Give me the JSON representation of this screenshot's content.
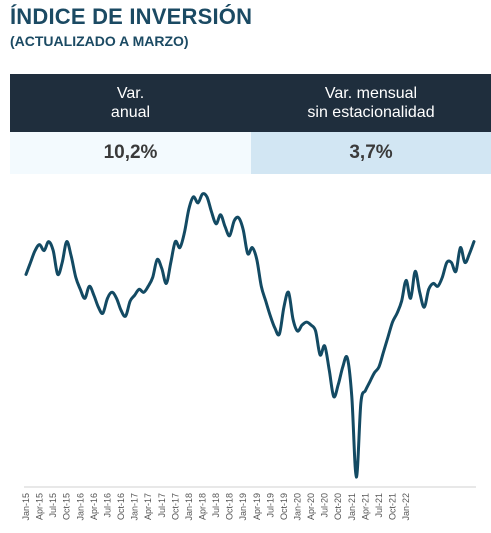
{
  "header": {
    "title": "ÍNDICE DE INVERSIÓN",
    "subtitle": "(ACTUALIZADO A MARZO)"
  },
  "kpis": [
    {
      "label_line1": "Var.",
      "label_line2": "anual",
      "value": "10,2%"
    },
    {
      "label_line1": "Var. mensual",
      "label_line2": "sin estacionalidad",
      "value": "3,7%"
    }
  ],
  "colors": {
    "line": "#134a63",
    "header_bg": "#1f2e3d",
    "title": "#1b4a63",
    "kpi_left_bg": "#f3fafe",
    "kpi_right_bg": "#d2e6f3"
  },
  "chart_data": {
    "type": "line",
    "title": "",
    "xlabel": "",
    "ylabel": "",
    "grid": false,
    "legend": "none",
    "x_tick_labels": [
      "Jan-15",
      "Apr-15",
      "Jul-15",
      "Oct-15",
      "Jan-16",
      "Apr-16",
      "Jul-16",
      "Oct-16",
      "Jan-17",
      "Apr-17",
      "Jul-17",
      "Oct-17",
      "Jan-18",
      "Apr-18",
      "Jul-18",
      "Oct-18",
      "Jan-19",
      "Apr-19",
      "Jul-19",
      "Oct-19",
      "Jan-20",
      "Apr-20",
      "Jul-20",
      "Oct-20",
      "Jan-21",
      "Apr-21",
      "Jul-21",
      "Oct-21",
      "Jan-22"
    ],
    "ylim": [
      0,
      100
    ],
    "series": [
      {
        "values": [
          [
            0,
            71
          ],
          [
            1,
            75
          ],
          [
            2,
            79
          ],
          [
            3,
            81
          ],
          [
            4,
            79
          ],
          [
            5,
            82
          ],
          [
            6,
            79
          ],
          [
            7,
            71
          ],
          [
            8,
            75
          ],
          [
            9,
            82
          ],
          [
            10,
            77
          ],
          [
            11,
            70
          ],
          [
            12,
            66
          ],
          [
            13,
            63
          ],
          [
            14,
            67
          ],
          [
            15,
            64
          ],
          [
            16,
            60
          ],
          [
            17,
            58
          ],
          [
            18,
            63
          ],
          [
            19,
            65
          ],
          [
            20,
            63
          ],
          [
            21,
            59
          ],
          [
            22,
            57
          ],
          [
            23,
            62
          ],
          [
            24,
            64
          ],
          [
            25,
            66
          ],
          [
            26,
            65
          ],
          [
            27,
            67
          ],
          [
            28,
            70
          ],
          [
            29,
            76
          ],
          [
            30,
            73
          ],
          [
            31,
            68
          ],
          [
            32,
            75
          ],
          [
            33,
            82
          ],
          [
            34,
            80
          ],
          [
            35,
            85
          ],
          [
            36,
            93
          ],
          [
            37,
            97
          ],
          [
            38,
            95
          ],
          [
            39,
            98
          ],
          [
            40,
            97
          ],
          [
            41,
            92
          ],
          [
            42,
            88
          ],
          [
            43,
            91
          ],
          [
            44,
            87
          ],
          [
            45,
            84
          ],
          [
            46,
            89
          ],
          [
            47,
            90
          ],
          [
            48,
            86
          ],
          [
            49,
            78
          ],
          [
            50,
            80
          ],
          [
            51,
            76
          ],
          [
            52,
            67
          ],
          [
            53,
            62
          ],
          [
            54,
            57
          ],
          [
            55,
            53
          ],
          [
            56,
            51
          ],
          [
            57,
            60
          ],
          [
            58,
            65
          ],
          [
            59,
            56
          ],
          [
            60,
            52
          ],
          [
            61,
            54
          ],
          [
            62,
            55
          ],
          [
            63,
            54
          ],
          [
            64,
            52
          ],
          [
            65,
            44
          ],
          [
            66,
            47
          ],
          [
            67,
            39
          ],
          [
            68,
            30
          ],
          [
            69,
            34
          ],
          [
            70,
            40
          ],
          [
            71,
            43
          ],
          [
            72,
            30
          ],
          [
            73,
            3
          ],
          [
            74,
            28
          ],
          [
            75,
            32
          ],
          [
            76,
            35
          ],
          [
            77,
            38
          ],
          [
            78,
            40
          ],
          [
            79,
            45
          ],
          [
            80,
            50
          ],
          [
            81,
            55
          ],
          [
            82,
            58
          ],
          [
            83,
            62
          ],
          [
            84,
            69
          ],
          [
            85,
            63
          ],
          [
            86,
            72
          ],
          [
            87,
            65
          ],
          [
            88,
            60
          ],
          [
            89,
            66
          ],
          [
            90,
            68
          ],
          [
            91,
            67
          ],
          [
            92,
            70
          ],
          [
            93,
            75
          ],
          [
            94,
            75
          ],
          [
            95,
            72
          ],
          [
            96,
            80
          ],
          [
            97,
            75
          ],
          [
            98,
            78
          ],
          [
            99,
            82
          ]
        ]
      }
    ]
  }
}
